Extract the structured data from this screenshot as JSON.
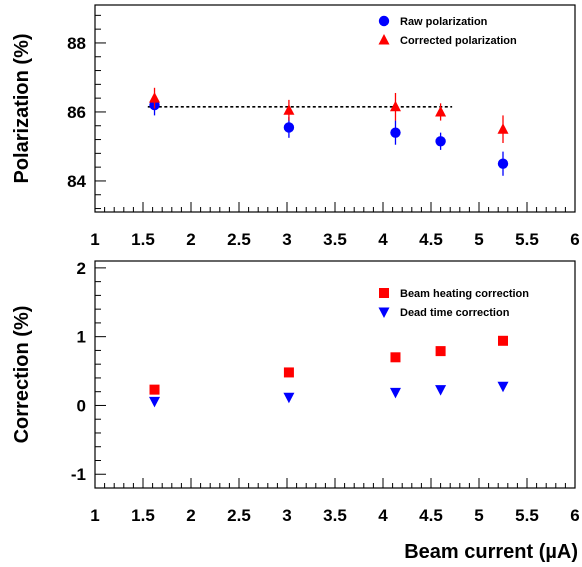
{
  "chart_data": [
    {
      "type": "scatter",
      "ylabel": "Polarization (%)",
      "xlim": [
        1,
        6
      ],
      "ylim": [
        83.1,
        89.1
      ],
      "x_ticks": [
        "1",
        "1.5",
        "2",
        "2.5",
        "3",
        "3.5",
        "4",
        "4.5",
        "5",
        "5.5",
        "6"
      ],
      "y_ticks": [
        "84",
        "86",
        "88"
      ],
      "legend_position": "top-right",
      "series": [
        {
          "name": "Raw polarization",
          "color": "#0000ff",
          "marker": "circle",
          "x": [
            1.62,
            3.02,
            4.13,
            4.6,
            5.25
          ],
          "y": [
            86.2,
            85.55,
            85.4,
            85.15,
            84.5
          ],
          "err": [
            0.3,
            0.3,
            0.35,
            0.25,
            0.35
          ]
        },
        {
          "name": "Corrected polarization",
          "color": "#ff0000",
          "marker": "triangle-up",
          "x": [
            1.62,
            3.02,
            4.13,
            4.6,
            5.25
          ],
          "y": [
            86.4,
            86.05,
            86.15,
            86.0,
            85.5
          ],
          "err": [
            0.3,
            0.3,
            0.4,
            0.25,
            0.4
          ]
        }
      ],
      "reference_line": {
        "y": 86.15,
        "x_range": [
          1.55,
          4.72
        ],
        "style": "dotted"
      }
    },
    {
      "type": "scatter",
      "xlabel": "Beam current (µA)",
      "ylabel": "Correction (%)",
      "xlim": [
        1,
        6
      ],
      "ylim": [
        -1.2,
        2.1
      ],
      "x_ticks": [
        "1",
        "1.5",
        "2",
        "2.5",
        "3",
        "3.5",
        "4",
        "4.5",
        "5",
        "5.5",
        "6"
      ],
      "y_ticks": [
        "-1",
        "0",
        "1",
        "2"
      ],
      "legend_position": "top-right",
      "series": [
        {
          "name": "Beam heating correction",
          "color": "#ff0000",
          "marker": "square",
          "x": [
            1.62,
            3.02,
            4.13,
            4.6,
            5.25
          ],
          "y": [
            0.23,
            0.48,
            0.7,
            0.79,
            0.94
          ]
        },
        {
          "name": "Dead time correction",
          "color": "#0000ff",
          "marker": "triangle-down",
          "x": [
            1.62,
            3.02,
            4.13,
            4.6,
            5.25
          ],
          "y": [
            0.06,
            0.12,
            0.19,
            0.23,
            0.28
          ]
        }
      ]
    }
  ]
}
